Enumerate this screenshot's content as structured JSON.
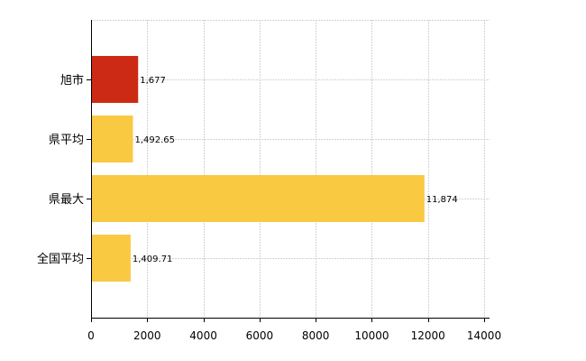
{
  "chart_data": {
    "type": "bar",
    "orientation": "horizontal",
    "title": "",
    "xlabel": "",
    "ylabel": "",
    "categories": [
      "旭市",
      "県平均",
      "県最大",
      "全国平均"
    ],
    "values": [
      1677,
      1492.65,
      11874,
      1409.71
    ],
    "value_labels": [
      "1,677",
      "1,492.65",
      "11,874",
      "1,409.71"
    ],
    "bar_colors": [
      "#cc2a14",
      "#f9c941",
      "#f9c941",
      "#f9c941"
    ],
    "xlim": [
      0,
      14000
    ],
    "xticks": [
      0,
      2000,
      4000,
      6000,
      8000,
      10000,
      12000,
      14000
    ],
    "xtick_labels": [
      "0",
      "2000",
      "4000",
      "6000",
      "8000",
      "10000",
      "12000",
      "14000"
    ],
    "grid": true,
    "legend": "none"
  }
}
